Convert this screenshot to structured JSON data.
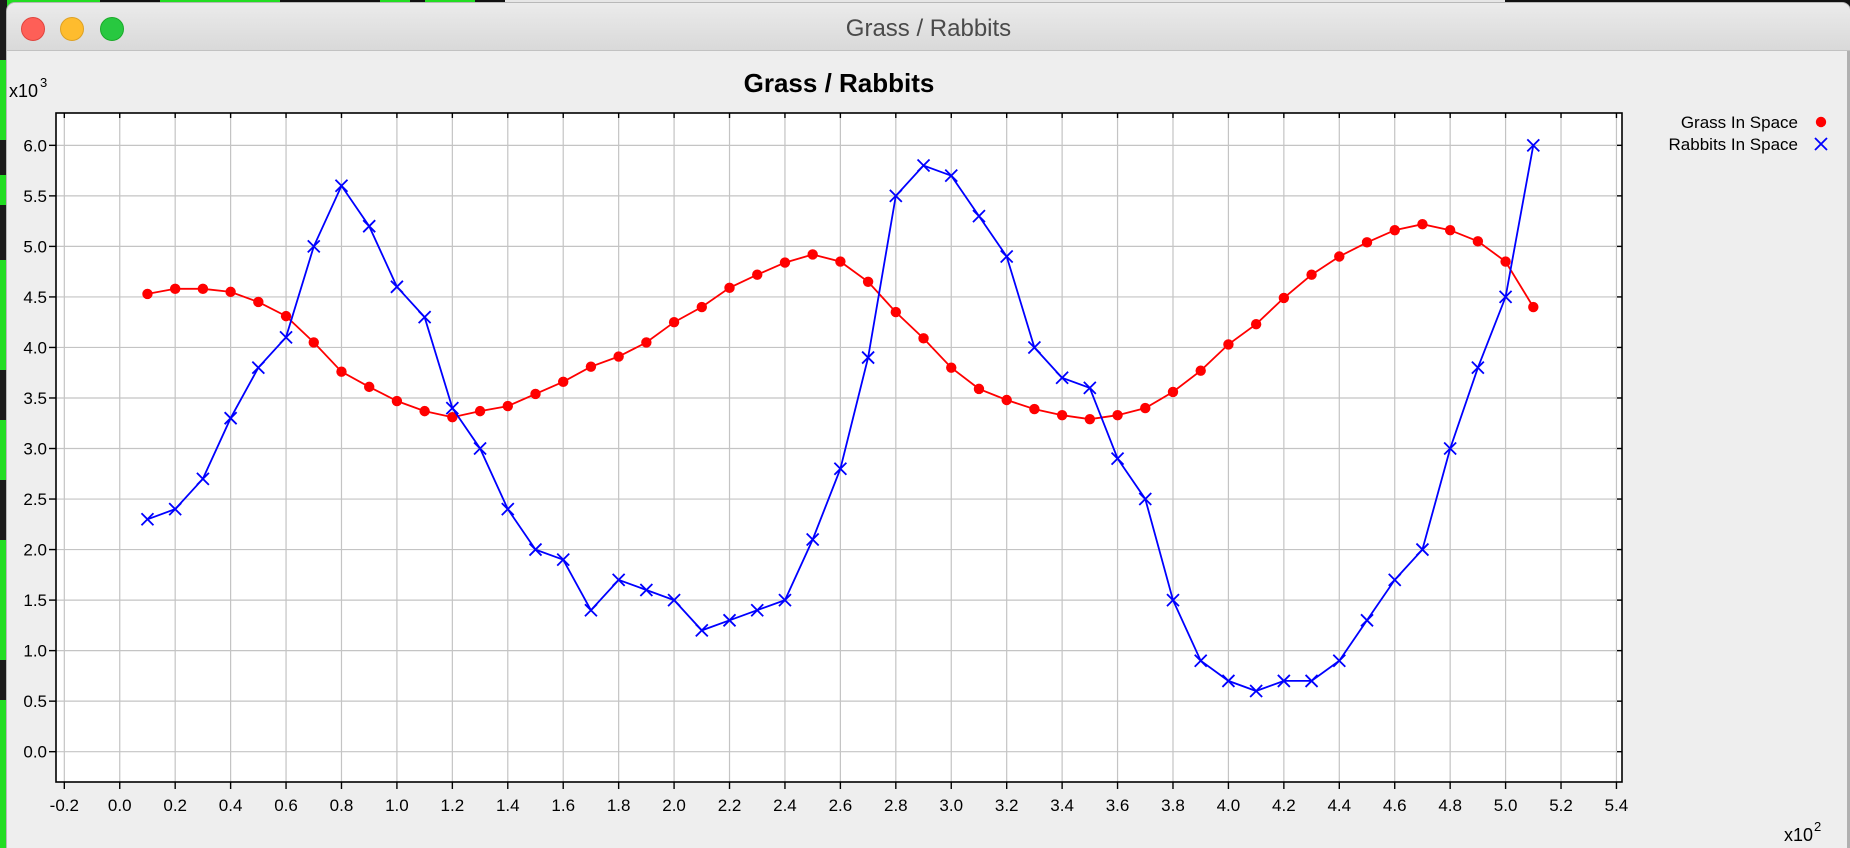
{
  "window": {
    "title": "Grass / Rabbits"
  },
  "chart_data": {
    "type": "line",
    "title": "Grass / Rabbits",
    "xlabel": "",
    "ylabel": "",
    "x_multiplier": "x10",
    "x_exponent": "2",
    "y_multiplier": "x10",
    "y_exponent": "3",
    "xlim": [
      -0.23,
      5.42
    ],
    "ylim": [
      -0.3,
      6.32
    ],
    "xticks": [
      -0.2,
      0.0,
      0.2,
      0.4,
      0.6,
      0.8,
      1.0,
      1.2,
      1.4,
      1.6,
      1.8,
      2.0,
      2.2,
      2.4,
      2.6,
      2.8,
      3.0,
      3.2,
      3.4,
      3.6,
      3.8,
      4.0,
      4.2,
      4.4,
      4.6,
      4.8,
      5.0,
      5.2,
      5.4
    ],
    "xtick_labels": [
      "-0.2",
      "0.0",
      "0.2",
      "0.4",
      "0.6",
      "0.8",
      "1.0",
      "1.2",
      "1.4",
      "1.6",
      "1.8",
      "2.0",
      "2.2",
      "2.4",
      "2.6",
      "2.8",
      "3.0",
      "3.2",
      "3.4",
      "3.6",
      "3.8",
      "4.0",
      "4.2",
      "4.4",
      "4.6",
      "4.8",
      "5.0",
      "5.2",
      "5.4"
    ],
    "yticks": [
      0.0,
      0.5,
      1.0,
      1.5,
      2.0,
      2.5,
      3.0,
      3.5,
      4.0,
      4.5,
      5.0,
      5.5,
      6.0
    ],
    "ytick_labels": [
      "0.0",
      "0.5",
      "1.0",
      "1.5",
      "2.0",
      "2.5",
      "3.0",
      "3.5",
      "4.0",
      "4.5",
      "5.0",
      "5.5",
      "6.0"
    ],
    "grid": true,
    "legend_position": "top-right, outside plot",
    "x": [
      0.1,
      0.2,
      0.3,
      0.4,
      0.5,
      0.6,
      0.7,
      0.8,
      0.9,
      1.0,
      1.1,
      1.2,
      1.3,
      1.4,
      1.5,
      1.6,
      1.7,
      1.8,
      1.9,
      2.0,
      2.1,
      2.2,
      2.3,
      2.4,
      2.5,
      2.6,
      2.7,
      2.8,
      2.9,
      3.0,
      3.1,
      3.2,
      3.3,
      3.4,
      3.5,
      3.6,
      3.7,
      3.8,
      3.9,
      4.0,
      4.1,
      4.2,
      4.3,
      4.4,
      4.5,
      4.6,
      4.7,
      4.8,
      4.9,
      5.0,
      5.1
    ],
    "series": [
      {
        "name": "Grass In Space",
        "color": "#ff0000",
        "marker": "circle",
        "values": [
          4.53,
          4.58,
          4.58,
          4.55,
          4.45,
          4.31,
          4.05,
          3.76,
          3.61,
          3.47,
          3.37,
          3.31,
          3.37,
          3.42,
          3.54,
          3.66,
          3.81,
          3.91,
          4.05,
          4.25,
          4.4,
          4.59,
          4.72,
          4.84,
          4.92,
          4.85,
          4.65,
          4.35,
          4.09,
          3.8,
          3.59,
          3.48,
          3.39,
          3.33,
          3.29,
          3.33,
          3.4,
          3.56,
          3.77,
          4.03,
          4.23,
          4.49,
          4.72,
          4.9,
          5.04,
          5.16,
          5.22,
          5.16,
          5.05,
          4.85,
          4.4
        ]
      },
      {
        "name": "Rabbits In Space",
        "color": "#0000ff",
        "marker": "x",
        "values": [
          2.3,
          2.4,
          2.7,
          3.3,
          3.8,
          4.1,
          5.0,
          5.6,
          5.2,
          4.6,
          4.3,
          3.4,
          3.0,
          2.4,
          2.0,
          1.9,
          1.4,
          1.7,
          1.6,
          1.5,
          1.2,
          1.3,
          1.4,
          1.5,
          2.1,
          2.8,
          3.9,
          5.5,
          5.8,
          5.7,
          5.3,
          4.9,
          4.0,
          3.7,
          3.6,
          2.9,
          2.5,
          1.5,
          0.9,
          0.7,
          0.6,
          0.7,
          0.7,
          0.9,
          1.3,
          1.7,
          2.0,
          3.0,
          3.8,
          4.5,
          6.0
        ]
      }
    ]
  }
}
